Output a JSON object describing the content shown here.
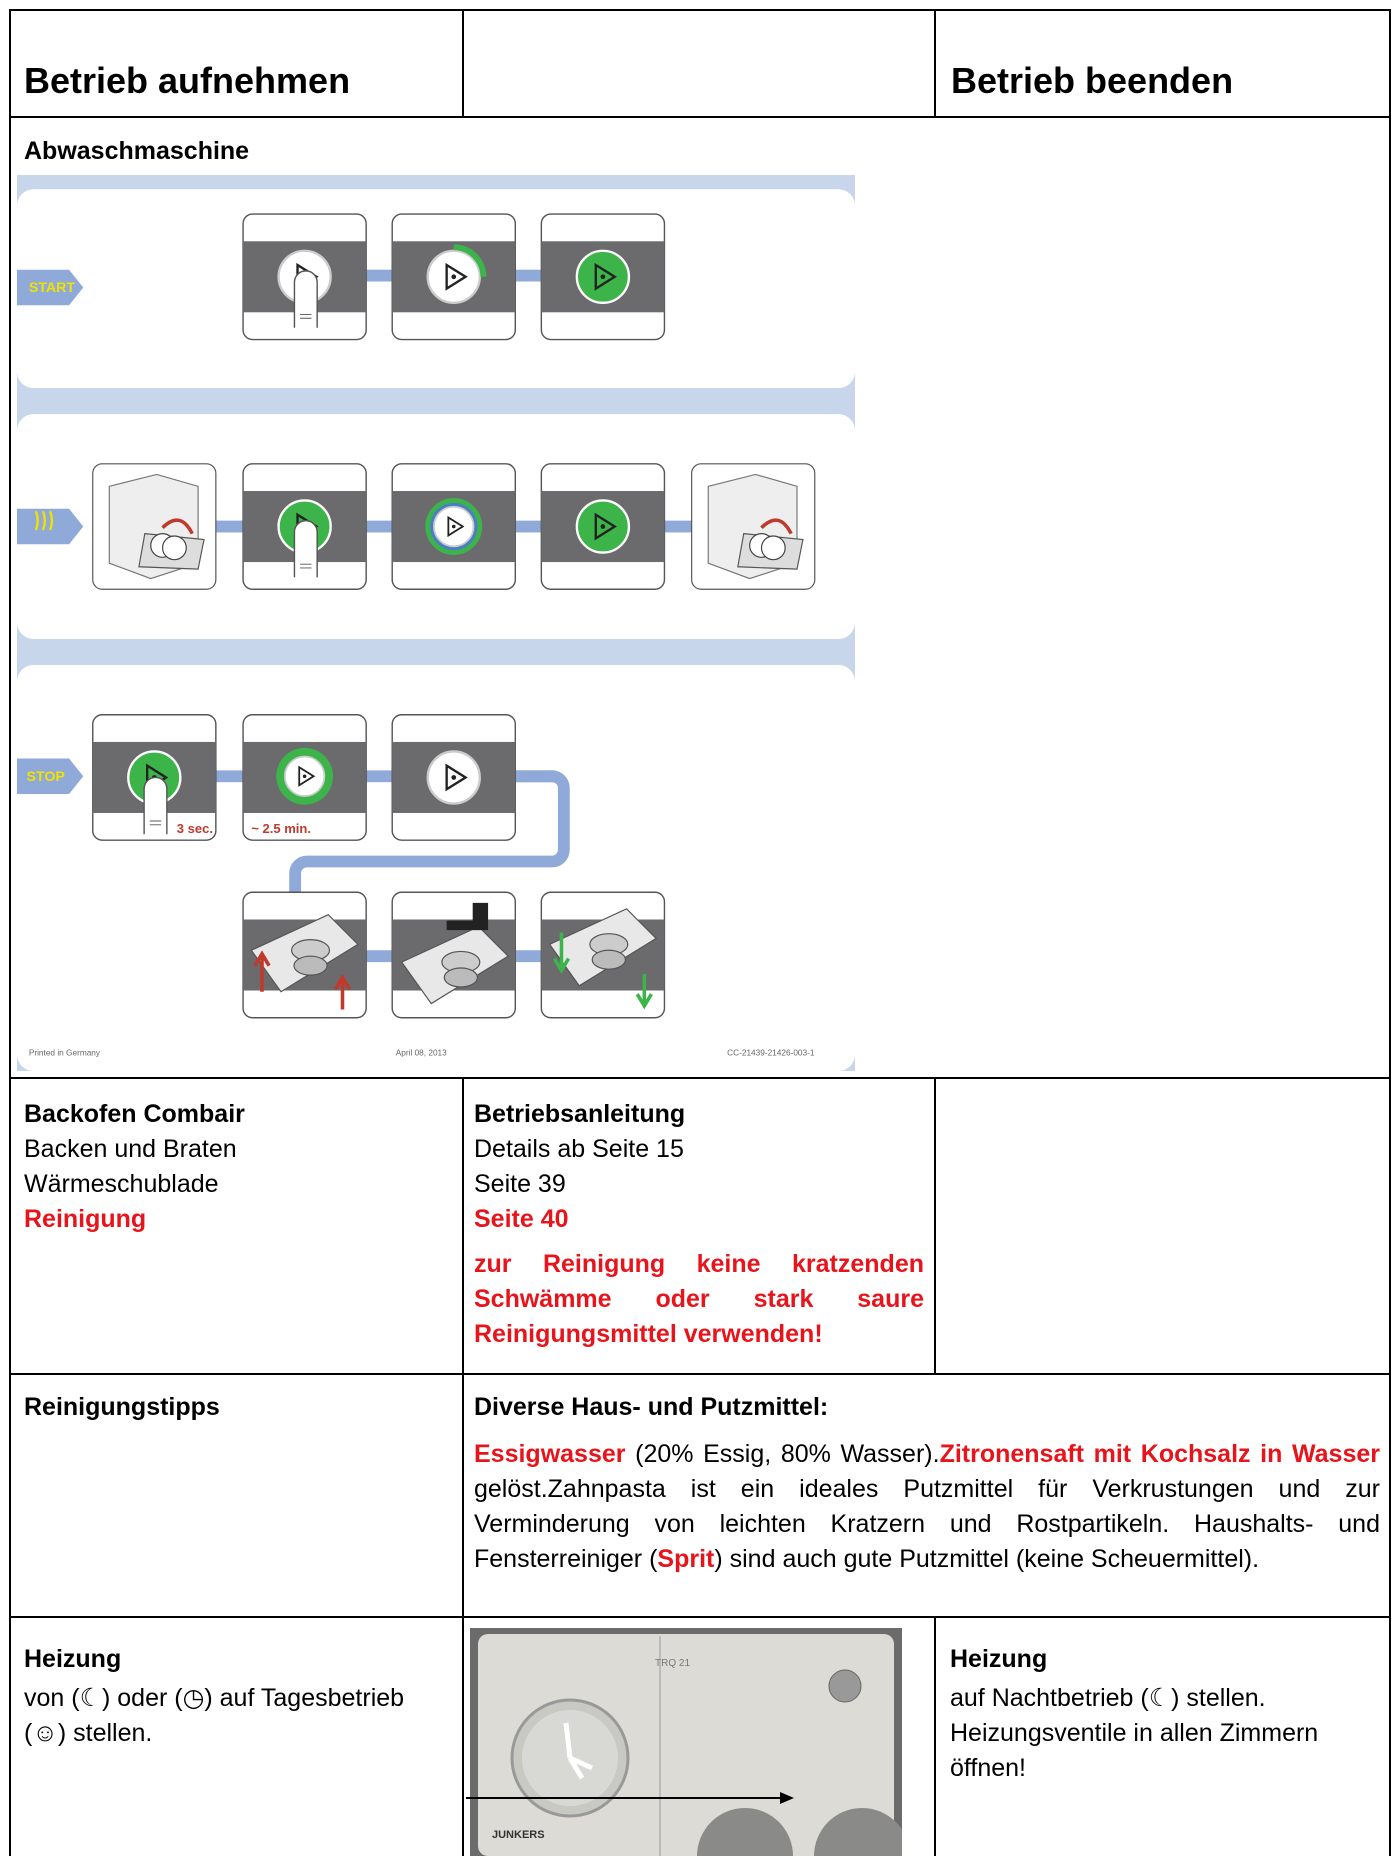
{
  "header": {
    "left": "Betrieb aufnehmen",
    "right": "Betrieb beenden"
  },
  "dishwasher": {
    "title": "Abwaschmaschine",
    "labels": {
      "start": "START",
      "stop": "STOP",
      "hold": "3 sec.",
      "duration": "~ 2.5 min."
    },
    "footer": [
      "Printed in Germany",
      "April 08, 2013",
      "CC-21439-21426-003-1"
    ]
  },
  "oven": {
    "title": "Backofen Combair",
    "items": [
      "Backen und Braten",
      "Wärmeschublade",
      "Reinigung"
    ],
    "manual_title": "Betriebsanleitung",
    "pages": [
      "Details ab Seite 15",
      "Seite 39",
      "Seite 40"
    ],
    "warning": "zur Reinigung keine kratzenden Schwämme oder stark saure Reinigungsmittel verwenden!"
  },
  "cleaning": {
    "title": "Reinigungstipps",
    "subtitle": "Diverse Haus- und Putzmittel:",
    "runs": [
      {
        "text": "Essigwasser",
        "red": true
      },
      {
        "text": " (20% Essig, 80% Wasser).",
        "red": false
      },
      {
        "text": "Zitronensaft mit Kochsalz in Wasser",
        "red": true
      },
      {
        "text": " gelöst.Zahnpasta ist ein ideales Putzmittel für Verkrustungen und zur Verminderung von leichten Kratzern und Rostpartikeln. Haushalts- und Fensterreiniger (",
        "red": false
      },
      {
        "text": "Sprit",
        "red": true
      },
      {
        "text": ") sind auch gute Putzmittel (keine Scheuermittel).",
        "red": false
      }
    ]
  },
  "heating": {
    "start_title": "Heizung",
    "start_text": "von (☾) oder (◷) auf Tagesbetrieb (☺) stellen.",
    "photo": {
      "model": "TRQ 21",
      "brand": "JUNKERS"
    },
    "end_title": "Heizung",
    "end_text": [
      "auf Nachtbetrieb (☾) stellen.",
      "Heizungsventile in allen Zimmern öffnen!"
    ]
  }
}
